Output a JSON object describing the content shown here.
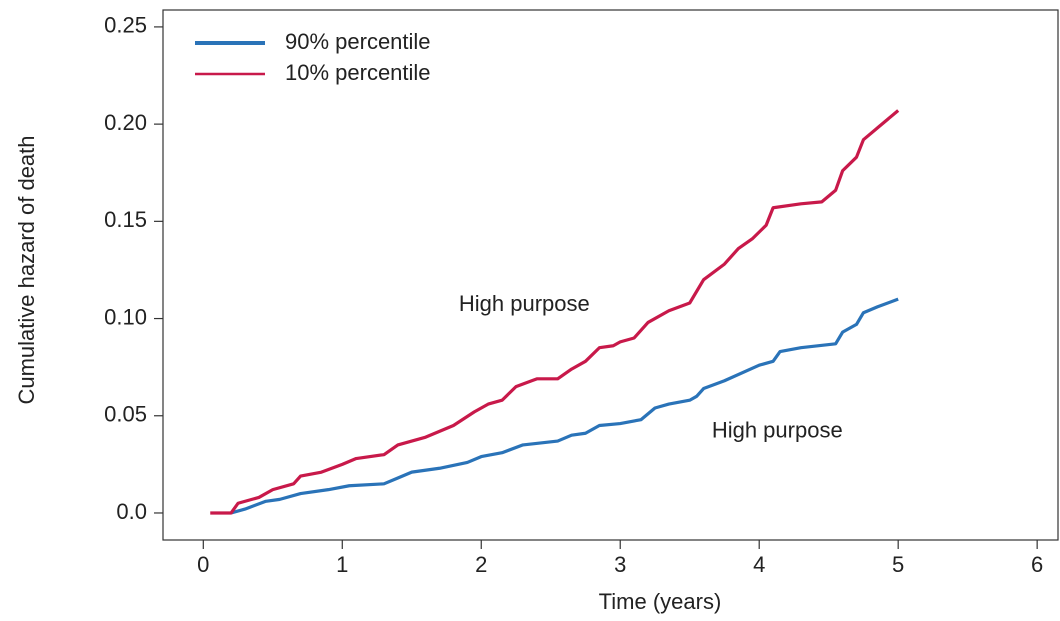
{
  "chart_data": {
    "type": "line",
    "xlabel": "Time (years)",
    "ylabel": "Cumulative hazard of death",
    "xlim": [
      -0.29,
      6.15
    ],
    "ylim": [
      -0.0139,
      0.2587
    ],
    "xticks": [
      0,
      1,
      2,
      3,
      4,
      5,
      6
    ],
    "yticks": [
      {
        "value": 0,
        "label": "0.0"
      },
      {
        "value": 0.05,
        "label": "0.05"
      },
      {
        "value": 0.1,
        "label": "0.10"
      },
      {
        "value": 0.15,
        "label": "0.15"
      },
      {
        "value": 0.2,
        "label": "0.20"
      },
      {
        "value": 0.25,
        "label": "0.25"
      }
    ],
    "legend": "upper left",
    "series": [
      {
        "name": "90% percentile",
        "color": "#2a73b8",
        "x": [
          0.2,
          0.3,
          0.45,
          0.55,
          0.7,
          0.9,
          1.05,
          1.3,
          1.4,
          1.5,
          1.7,
          1.9,
          2.0,
          2.15,
          2.3,
          2.55,
          2.65,
          2.75,
          2.85,
          3.0,
          3.15,
          3.25,
          3.35,
          3.5,
          3.55,
          3.6,
          3.75,
          4.0,
          4.1,
          4.15,
          4.3,
          4.55,
          4.6,
          4.7,
          4.75,
          4.85,
          5.0
        ],
        "values": [
          0,
          0.002,
          0.006,
          0.007,
          0.01,
          0.012,
          0.014,
          0.015,
          0.018,
          0.021,
          0.023,
          0.026,
          0.029,
          0.031,
          0.035,
          0.037,
          0.04,
          0.041,
          0.045,
          0.046,
          0.048,
          0.054,
          0.056,
          0.058,
          0.06,
          0.064,
          0.068,
          0.076,
          0.078,
          0.083,
          0.085,
          0.087,
          0.093,
          0.097,
          0.103,
          0.106,
          0.11
        ]
      },
      {
        "name": "10% percentile",
        "color": "#c8194a",
        "x": [
          0.05,
          0.2,
          0.25,
          0.4,
          0.5,
          0.65,
          0.7,
          0.85,
          1.0,
          1.1,
          1.3,
          1.4,
          1.6,
          1.8,
          1.95,
          2.05,
          2.15,
          2.25,
          2.4,
          2.55,
          2.65,
          2.75,
          2.85,
          2.95,
          3.0,
          3.1,
          3.2,
          3.35,
          3.5,
          3.6,
          3.75,
          3.85,
          3.95,
          4.05,
          4.1,
          4.3,
          4.45,
          4.55,
          4.6,
          4.7,
          4.75,
          4.85,
          5.0
        ],
        "values": [
          0,
          0,
          0.005,
          0.008,
          0.012,
          0.015,
          0.019,
          0.021,
          0.025,
          0.028,
          0.03,
          0.035,
          0.039,
          0.045,
          0.052,
          0.056,
          0.058,
          0.065,
          0.069,
          0.069,
          0.074,
          0.078,
          0.085,
          0.086,
          0.088,
          0.09,
          0.098,
          0.104,
          0.108,
          0.12,
          0.128,
          0.136,
          0.141,
          0.148,
          0.157,
          0.159,
          0.16,
          0.166,
          0.176,
          0.183,
          0.192,
          0.198,
          0.207
        ]
      }
    ],
    "annotations": [
      {
        "text": "High purpose",
        "x": 2.31,
        "y": 0.107
      },
      {
        "text": "High purpose",
        "x": 4.13,
        "y": 0.0417
      }
    ]
  }
}
